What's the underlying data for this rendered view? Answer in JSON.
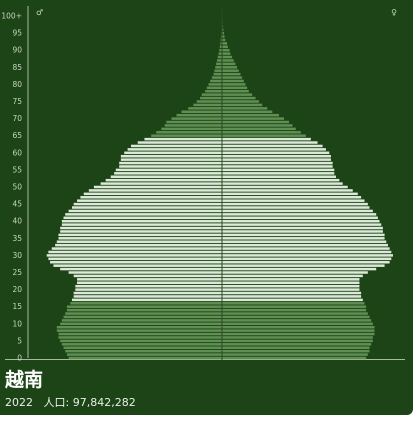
{
  "card": {
    "country": "越南",
    "year": "2022",
    "population_label": "人口:",
    "population_value": "97,842,282"
  },
  "colors": {
    "background": "#1d4417",
    "bar_light": "#dce9d8",
    "bar_dark": "#5f8f52",
    "axis": "#a8b8a2",
    "center_line": "#2a4a22",
    "text": "#c8d4c4"
  },
  "chart_data": {
    "type": "bar",
    "orientation": "horizontal",
    "kind": "population-pyramid",
    "left_label": "♂",
    "right_label": "♀",
    "x_range_percent": [
      -1.05,
      1.05
    ],
    "y_ticks": [
      "0",
      "5",
      "10",
      "15",
      "20",
      "25",
      "30",
      "35",
      "40",
      "45",
      "50",
      "55",
      "60",
      "65",
      "70",
      "75",
      "80",
      "85",
      "90",
      "95",
      "100+"
    ],
    "ages": [
      0,
      1,
      2,
      3,
      4,
      5,
      6,
      7,
      8,
      9,
      10,
      11,
      12,
      13,
      14,
      15,
      16,
      17,
      18,
      19,
      20,
      21,
      22,
      23,
      24,
      25,
      26,
      27,
      28,
      29,
      30,
      31,
      32,
      33,
      34,
      35,
      36,
      37,
      38,
      39,
      40,
      41,
      42,
      43,
      44,
      45,
      46,
      47,
      48,
      49,
      50,
      51,
      52,
      53,
      54,
      55,
      56,
      57,
      58,
      59,
      60,
      61,
      62,
      63,
      64,
      65,
      66,
      67,
      68,
      69,
      70,
      71,
      72,
      73,
      74,
      75,
      76,
      77,
      78,
      79,
      80,
      81,
      82,
      83,
      84,
      85,
      86,
      87,
      88,
      89,
      90,
      91,
      92,
      93,
      94,
      95,
      96,
      97,
      98,
      99,
      100
    ],
    "series": [
      {
        "side": "left",
        "values": [
          0.91,
          0.92,
          0.93,
          0.94,
          0.95,
          0.96,
          0.97,
          0.97,
          0.98,
          0.98,
          0.96,
          0.95,
          0.94,
          0.93,
          0.92,
          0.92,
          0.9,
          0.89,
          0.88,
          0.88,
          0.87,
          0.87,
          0.86,
          0.86,
          0.88,
          0.91,
          0.96,
          1.0,
          1.02,
          1.03,
          1.04,
          1.03,
          1.01,
          0.99,
          0.98,
          0.97,
          0.97,
          0.96,
          0.96,
          0.95,
          0.95,
          0.94,
          0.93,
          0.91,
          0.89,
          0.88,
          0.86,
          0.84,
          0.82,
          0.79,
          0.76,
          0.72,
          0.69,
          0.66,
          0.64,
          0.63,
          0.61,
          0.61,
          0.6,
          0.6,
          0.58,
          0.56,
          0.54,
          0.5,
          0.46,
          0.42,
          0.39,
          0.36,
          0.34,
          0.33,
          0.3,
          0.27,
          0.24,
          0.2,
          0.17,
          0.15,
          0.13,
          0.12,
          0.1,
          0.09,
          0.08,
          0.07,
          0.06,
          0.05,
          0.045,
          0.04,
          0.035,
          0.03,
          0.025,
          0.02,
          0.016,
          0.013,
          0.01,
          0.008,
          0.006,
          0.004,
          0.003,
          0.002,
          0.0015,
          0.001,
          0.001
        ]
      },
      {
        "side": "right",
        "values": [
          0.86,
          0.87,
          0.88,
          0.88,
          0.89,
          0.9,
          0.9,
          0.91,
          0.91,
          0.91,
          0.9,
          0.89,
          0.88,
          0.87,
          0.86,
          0.86,
          0.85,
          0.84,
          0.83,
          0.83,
          0.82,
          0.82,
          0.82,
          0.82,
          0.84,
          0.87,
          0.92,
          0.97,
          1.0,
          1.01,
          1.02,
          1.01,
          1.0,
          0.99,
          0.98,
          0.97,
          0.97,
          0.96,
          0.96,
          0.95,
          0.94,
          0.93,
          0.92,
          0.9,
          0.88,
          0.87,
          0.85,
          0.83,
          0.81,
          0.78,
          0.75,
          0.72,
          0.7,
          0.68,
          0.67,
          0.67,
          0.66,
          0.66,
          0.65,
          0.65,
          0.64,
          0.62,
          0.6,
          0.57,
          0.53,
          0.5,
          0.47,
          0.44,
          0.42,
          0.4,
          0.37,
          0.34,
          0.3,
          0.27,
          0.24,
          0.22,
          0.2,
          0.18,
          0.16,
          0.15,
          0.14,
          0.13,
          0.12,
          0.11,
          0.1,
          0.09,
          0.08,
          0.07,
          0.06,
          0.05,
          0.045,
          0.035,
          0.03,
          0.02,
          0.015,
          0.012,
          0.008,
          0.005,
          0.004,
          0.003,
          0.003
        ]
      }
    ],
    "highlight_age_ranges": [
      [
        0,
        16
      ],
      [
        65,
        100
      ]
    ]
  }
}
